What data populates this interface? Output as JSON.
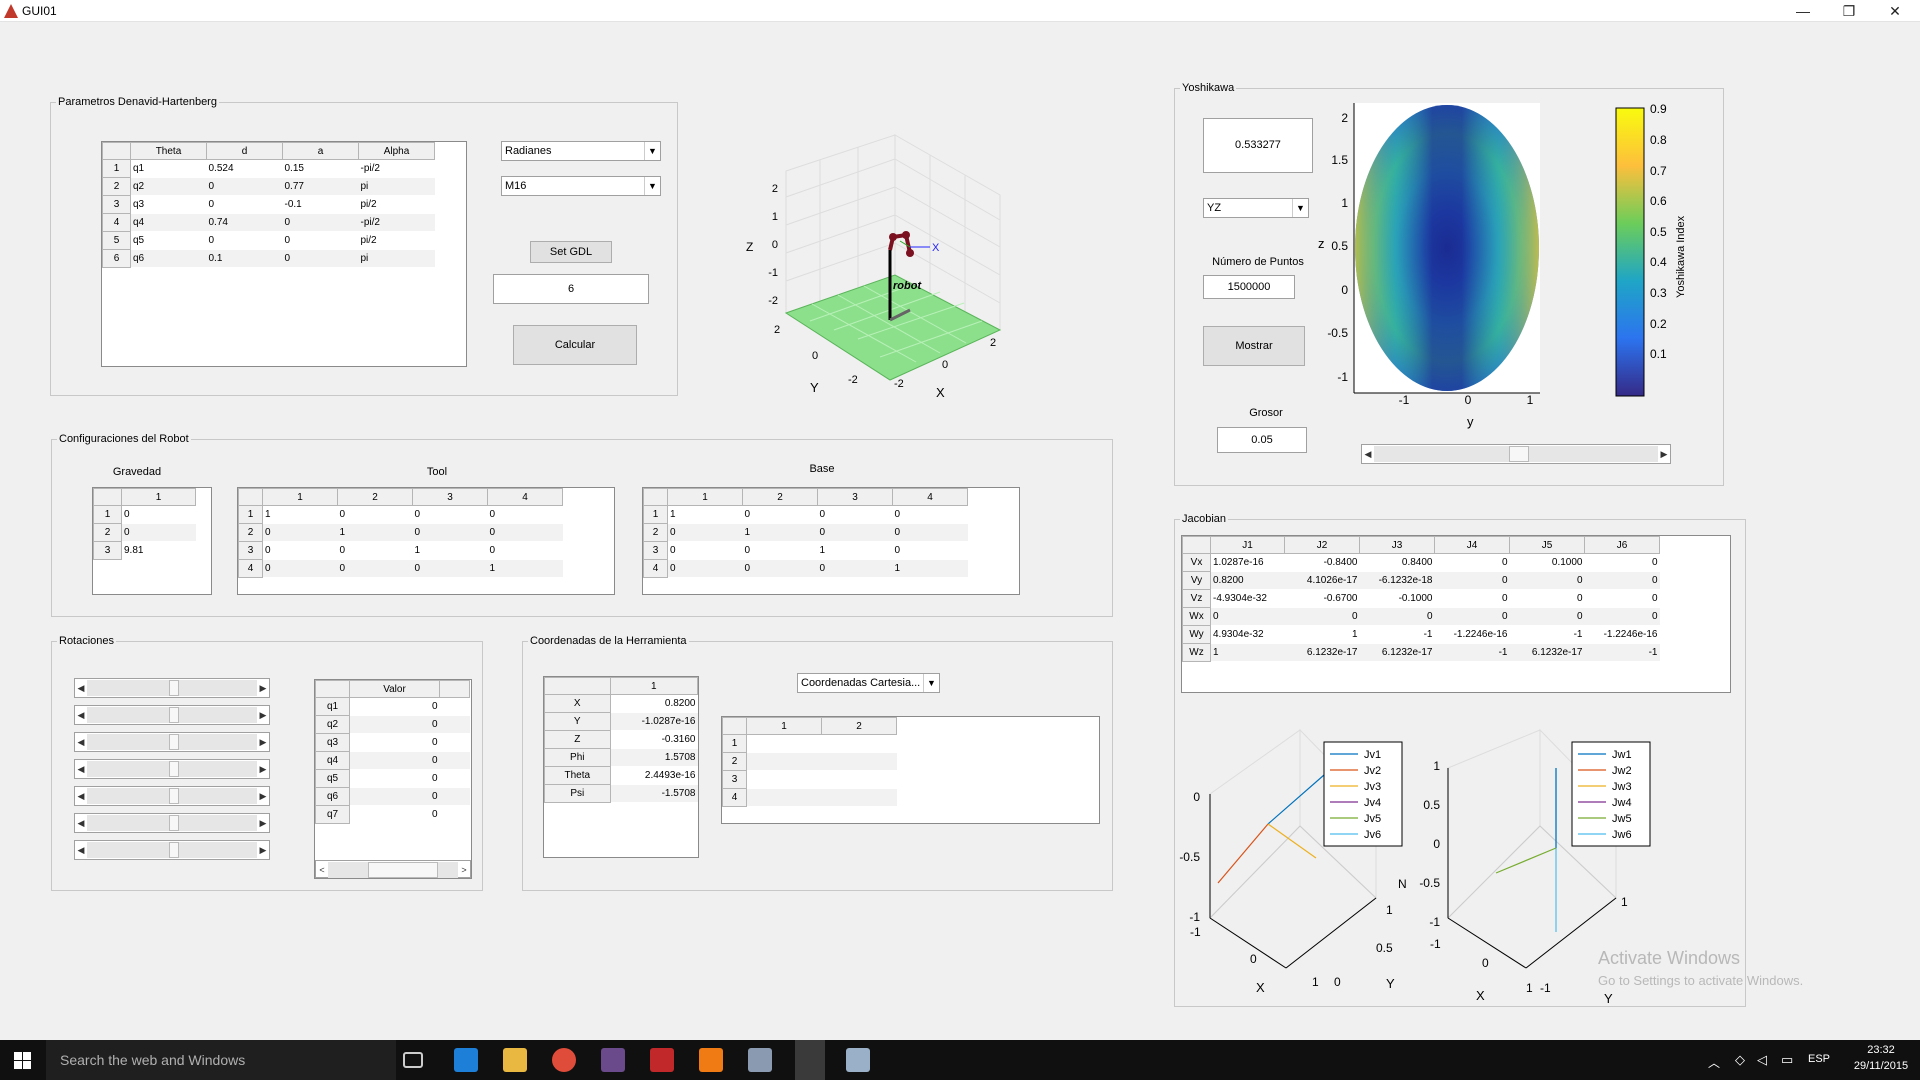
{
  "window": {
    "title": "GUI01",
    "minimize": "—",
    "maximize": "❐",
    "close": "✕"
  },
  "dh": {
    "title": "Parametros Denavid-Hartenberg",
    "headers": [
      "Theta",
      "d",
      "a",
      "Alpha"
    ],
    "rows": [
      [
        "1",
        "q1",
        "0.524",
        "0.15",
        "-pi/2"
      ],
      [
        "2",
        "q2",
        "0",
        "0.77",
        "pi"
      ],
      [
        "3",
        "q3",
        "0",
        "-0.1",
        "pi/2"
      ],
      [
        "4",
        "q4",
        "0.74",
        "0",
        "-pi/2"
      ],
      [
        "5",
        "q5",
        "0",
        "0",
        "pi/2"
      ],
      [
        "6",
        "q6",
        "0.1",
        "0",
        "pi"
      ]
    ],
    "units_select": "Radianes",
    "robot_select": "M16",
    "set_gdl": "Set GDL",
    "gdl_value": "6",
    "calcular": "Calcular"
  },
  "robot_plot": {
    "z_label": "Z",
    "y_label": "Y",
    "x_label": "X",
    "z_ticks": [
      "2",
      "1",
      "0",
      "-1",
      "-2"
    ],
    "y_ticks": [
      "2",
      "0",
      "-2"
    ],
    "x_ticks": [
      "-2",
      "0",
      "2"
    ],
    "axis_x": "X",
    "robot_label": "robot"
  },
  "config": {
    "title": "Configuraciones del Robot",
    "gravedad": {
      "label": "Gravedad",
      "headers": [
        "1"
      ],
      "rows": [
        [
          "1",
          "0"
        ],
        [
          "2",
          "0"
        ],
        [
          "3",
          "9.81"
        ]
      ]
    },
    "tool": {
      "label": "Tool",
      "headers": [
        "1",
        "2",
        "3",
        "4"
      ],
      "rows": [
        [
          "1",
          "1",
          "0",
          "0",
          "0"
        ],
        [
          "2",
          "0",
          "1",
          "0",
          "0"
        ],
        [
          "3",
          "0",
          "0",
          "1",
          "0"
        ],
        [
          "4",
          "0",
          "0",
          "0",
          "1"
        ]
      ]
    },
    "base": {
      "label": "Base",
      "headers": [
        "1",
        "2",
        "3",
        "4"
      ],
      "rows": [
        [
          "1",
          "1",
          "0",
          "0",
          "0"
        ],
        [
          "2",
          "0",
          "1",
          "0",
          "0"
        ],
        [
          "3",
          "0",
          "0",
          "1",
          "0"
        ],
        [
          "4",
          "0",
          "0",
          "0",
          "1"
        ]
      ]
    }
  },
  "rotaciones": {
    "title": "Rotaciones",
    "valor_header": "Valor",
    "rows": [
      [
        "q1",
        "0"
      ],
      [
        "q2",
        "0"
      ],
      [
        "q3",
        "0"
      ],
      [
        "q4",
        "0"
      ],
      [
        "q5",
        "0"
      ],
      [
        "q6",
        "0"
      ],
      [
        "q7",
        "0"
      ]
    ],
    "hscroll_left": "<",
    "hscroll_right": ">"
  },
  "coords": {
    "title": "Coordenadas de la Herramienta",
    "header": "1",
    "rows": [
      [
        "X",
        "0.8200"
      ],
      [
        "Y",
        "-1.0287e-16"
      ],
      [
        "Z",
        "-0.3160"
      ],
      [
        "Phi",
        "1.5708"
      ],
      [
        "Theta",
        "2.4493e-16"
      ],
      [
        "Psi",
        "-1.5708"
      ]
    ],
    "select": "Coordenadas Cartesia...",
    "table2": {
      "headers": [
        "1",
        "2"
      ],
      "rows": [
        "1",
        "2",
        "3",
        "4"
      ]
    }
  },
  "yoshikawa": {
    "title": "Yoshikawa",
    "value": "0.533277",
    "plane_select": "YZ",
    "num_label": "Número de Puntos",
    "num_value": "1500000",
    "mostrar": "Mostrar",
    "grosor_label": "Grosor",
    "grosor_value": "0.05",
    "plot": {
      "ylabel": "z",
      "xlabel": "y",
      "y_ticks": [
        "2",
        "1.5",
        "1",
        "0.5",
        "0",
        "-0.5",
        "-1"
      ],
      "x_ticks": [
        "-1",
        "0",
        "1"
      ],
      "colorbar_ticks": [
        "0.9",
        "0.8",
        "0.7",
        "0.6",
        "0.5",
        "0.4",
        "0.3",
        "0.2",
        "0.1"
      ],
      "colorbar_label": "Yoshikawa Index"
    }
  },
  "jacobian": {
    "title": "Jacobian",
    "headers": [
      "J1",
      "J2",
      "J3",
      "J4",
      "J5",
      "J6"
    ],
    "rows": [
      [
        "Vx",
        "1.0287e-16",
        "-0.8400",
        "0.8400",
        "0",
        "0.1000",
        "0"
      ],
      [
        "Vy",
        "0.8200",
        "4.1026e-17",
        "-6.1232e-18",
        "0",
        "0",
        "0"
      ],
      [
        "Vz",
        "-4.9304e-32",
        "-0.6700",
        "-0.1000",
        "0",
        "0",
        "0"
      ],
      [
        "Wx",
        "0",
        "0",
        "0",
        "0",
        "0",
        "0"
      ],
      [
        "Wy",
        "4.9304e-32",
        "1",
        "-1",
        "-1.2246e-16",
        "-1",
        "-1.2246e-16"
      ],
      [
        "Wz",
        "1",
        "6.1232e-17",
        "6.1232e-17",
        "-1",
        "6.1232e-17",
        "-1"
      ]
    ],
    "plot1": {
      "legend": [
        "Jv1",
        "Jv2",
        "Jv3",
        "Jv4",
        "Jv5",
        "Jv6"
      ],
      "z_ticks": [
        "0",
        "-0.5",
        "-1"
      ],
      "x_ticks": [
        "-1",
        "0",
        "1"
      ],
      "y_ticks": [
        "0",
        "0.5",
        "1"
      ],
      "x_label": "X",
      "y_label": "Y",
      "z_label": "N"
    },
    "plot2": {
      "legend": [
        "Jw1",
        "Jw2",
        "Jw3",
        "Jw4",
        "Jw5",
        "Jw6"
      ],
      "z_ticks": [
        "1",
        "0.5",
        "0",
        "-0.5",
        "-1"
      ],
      "x_ticks": [
        "-1",
        "0",
        "1"
      ],
      "y_ticks": [
        "-1",
        "1"
      ],
      "x_label": "X",
      "y_label": "Y"
    },
    "legend_colors": [
      "#0072bd",
      "#d95319",
      "#edb120",
      "#7e2f8e",
      "#77ac30",
      "#4dbeee"
    ]
  },
  "watermark": {
    "line1": "Activate Windows",
    "line2": "Go to Settings to activate Windows."
  },
  "taskbar": {
    "search": "Search the web and Windows",
    "lang": "ESP",
    "time": "23:32",
    "date": "29/11/2015"
  }
}
